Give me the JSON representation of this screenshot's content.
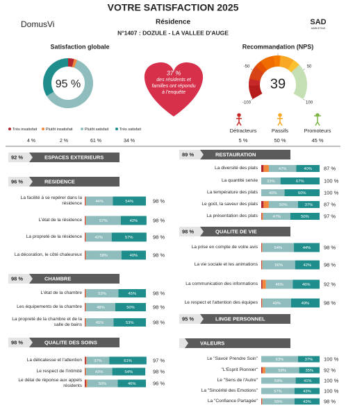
{
  "header": {
    "title": "VOTRE SATISFACTION 2025",
    "logo": "DomusVi",
    "residence": "Résidence",
    "establishment": "N°1407 : DOZULE - LA VALLEE D'AUGE",
    "brand": "SAD",
    "brand_sub": "MARKETING"
  },
  "segment_colors": [
    "#b3262e",
    "#f2883c",
    "#8fbcbc",
    "#1f8d8c"
  ],
  "satisfaction": {
    "title": "Satisfaction globale",
    "score": "95 %",
    "categories": [
      "Très insatisfait",
      "Plutôt insatisfait",
      "Plutôt satisfait",
      "Très satisfait"
    ],
    "values": [
      4,
      2,
      61,
      34
    ],
    "value_labels": [
      "4 %",
      "2 %",
      "61 %",
      "34 %"
    ]
  },
  "response": {
    "rate": "37 %",
    "text": "des résidents et familles ont répondu à l'enquête"
  },
  "nps": {
    "title": "Recommandation (NPS)",
    "value": 39,
    "lim": [
      -100,
      100
    ],
    "ticks": [
      -100,
      -50,
      0,
      50,
      100
    ],
    "groups": [
      {
        "name": "Détracteurs",
        "share": "5 %",
        "color": "#c62828"
      },
      {
        "name": "Passifs",
        "share": "50 %",
        "color": "#f5a623"
      },
      {
        "name": "Promoteurs",
        "share": "45 %",
        "color": "#7cb342"
      }
    ]
  },
  "columns": [
    [
      {
        "score": "92 %",
        "title": "ESPACES EXTERIEURS",
        "items": []
      },
      {
        "score": "96 %",
        "title": "RESIDENCE",
        "items": [
          {
            "label": "La facilité à se repérer dans la résidence",
            "segments": [
              {
                "value": 1
              },
              {
                "value": 1
              },
              {
                "value": 44,
                "label": "44%"
              },
              {
                "value": 54,
                "label": "54%"
              }
            ],
            "total": "98 %"
          },
          {
            "label": "L'état de la résidence",
            "segments": [
              {
                "value": 1
              },
              {
                "value": 1
              },
              {
                "value": 57,
                "label": "57%"
              },
              {
                "value": 42,
                "label": "42%"
              }
            ],
            "total": "98 %"
          },
          {
            "label": "La propreté de la résidence",
            "segments": [
              {
                "value": 1
              },
              {
                "value": 1
              },
              {
                "value": 42,
                "label": "42%"
              },
              {
                "value": 57,
                "label": "57%"
              }
            ],
            "total": "98 %"
          },
          {
            "label": "La décoration, le côté chaleureux",
            "segments": [
              {
                "value": 1
              },
              {
                "value": 1
              },
              {
                "value": 58,
                "label": "58%"
              },
              {
                "value": 40,
                "label": "40%"
              }
            ],
            "total": "98 %"
          }
        ]
      },
      {
        "score": "98 %",
        "title": "CHAMBRE",
        "items": [
          {
            "label": "L'état de la chambre",
            "segments": [
              {
                "value": 1
              },
              {
                "value": 1
              },
              {
                "value": 53,
                "label": "53%"
              },
              {
                "value": 45,
                "label": "45%"
              }
            ],
            "total": "98 %"
          },
          {
            "label": "Les équipements de la chambre",
            "segments": [
              {
                "value": 1
              },
              {
                "value": 1
              },
              {
                "value": 48,
                "label": "48%"
              },
              {
                "value": 50,
                "label": "50%"
              }
            ],
            "total": "98 %"
          },
          {
            "label": "La propreté de la chambre et de la salle de bains",
            "segments": [
              {
                "value": 1
              },
              {
                "value": 1
              },
              {
                "value": 45,
                "label": "45%"
              },
              {
                "value": 53,
                "label": "53%"
              }
            ],
            "total": "98 %"
          }
        ]
      },
      {
        "score": "98 %",
        "title": "QUALITE DES SOINS",
        "items": [
          {
            "label": "La délicatesse et l'attention",
            "segments": [
              {
                "value": 2
              },
              {
                "value": 1
              },
              {
                "value": 37,
                "label": "37%"
              },
              {
                "value": 61,
                "label": "61%"
              }
            ],
            "total": "97 %"
          },
          {
            "label": "Le respect de l'intimité",
            "segments": [
              {
                "value": 1
              },
              {
                "value": 1
              },
              {
                "value": 43,
                "label": "43%"
              },
              {
                "value": 54,
                "label": "54%"
              }
            ],
            "total": "98 %"
          },
          {
            "label": "Le délai de réponse aux appels résidents",
            "segments": [
              {
                "value": 2
              },
              {
                "value": 2
              },
              {
                "value": 50,
                "label": "50%"
              },
              {
                "value": 46,
                "label": "46%"
              }
            ],
            "total": "96 %"
          }
        ]
      }
    ],
    [
      {
        "score": "89 %",
        "title": "RESTAURATION",
        "items": [
          {
            "label": "La diversité des plats",
            "segments": [
              {
                "value": 4
              },
              {
                "value": 9
              },
              {
                "value": 47,
                "label": "47%"
              },
              {
                "value": 40,
                "label": "40%"
              }
            ],
            "total": "87 %"
          },
          {
            "label": "La quantité servie",
            "segments": [
              {
                "value": 0
              },
              {
                "value": 0
              },
              {
                "value": 33,
                "label": "33%"
              },
              {
                "value": 67,
                "label": "67%"
              }
            ],
            "total": "100 %"
          },
          {
            "label": "La température des plats",
            "segments": [
              {
                "value": 0
              },
              {
                "value": 0
              },
              {
                "value": 40,
                "label": "40%"
              },
              {
                "value": 60,
                "label": "60%"
              }
            ],
            "total": "100 %"
          },
          {
            "label": "Le goût, la saveur des plats",
            "segments": [
              {
                "value": 4
              },
              {
                "value": 9
              },
              {
                "value": 50,
                "label": "50%"
              },
              {
                "value": 37,
                "label": "37%"
              }
            ],
            "total": "87 %"
          },
          {
            "label": "La présentation des plats",
            "segments": [
              {
                "value": 1
              },
              {
                "value": 2
              },
              {
                "value": 47,
                "label": "47%"
              },
              {
                "value": 50,
                "label": "50%"
              }
            ],
            "total": "97 %"
          }
        ]
      },
      {
        "score": "98 %",
        "title": "QUALITE DE VIE",
        "items": [
          {
            "label": "La prise en compte de votre avis",
            "segments": [
              {
                "value": 1
              },
              {
                "value": 1
              },
              {
                "value": 54,
                "label": "54%"
              },
              {
                "value": 44,
                "label": "44%"
              }
            ],
            "total": "98 %"
          },
          {
            "label": "La vie sociale et les animations",
            "segments": [
              {
                "value": 1
              },
              {
                "value": 1
              },
              {
                "value": 56,
                "label": "56%"
              },
              {
                "value": 42,
                "label": "42%"
              }
            ],
            "total": "98 %"
          },
          {
            "label": "La communication des informations",
            "segments": [
              {
                "value": 2
              },
              {
                "value": 6
              },
              {
                "value": 46,
                "label": "46%"
              },
              {
                "value": 46,
                "label": "46%"
              }
            ],
            "total": "92 %"
          },
          {
            "label": "Le respect et l'attention des équipes",
            "segments": [
              {
                "value": 1
              },
              {
                "value": 1
              },
              {
                "value": 49,
                "label": "49%"
              },
              {
                "value": 49,
                "label": "49%"
              }
            ],
            "total": "98 %"
          }
        ]
      },
      {
        "score": "95 %",
        "title": "LINGE PERSONNEL",
        "items": []
      },
      {
        "title": "VALEURS",
        "items": [
          {
            "label": "Le \"Savoir Prendre Soin\"",
            "segments": [
              {
                "value": 0
              },
              {
                "value": 0
              },
              {
                "value": 63,
                "label": "63%"
              },
              {
                "value": 37,
                "label": "37%"
              }
            ],
            "total": "100 %"
          },
          {
            "label": "\"L'Esprit Pionnier\"",
            "segments": [
              {
                "value": 2
              },
              {
                "value": 5
              },
              {
                "value": 58,
                "label": "58%"
              },
              {
                "value": 35,
                "label": "35%"
              }
            ],
            "total": "92 %"
          },
          {
            "label": "Le \"Sens de l'Autre\"",
            "segments": [
              {
                "value": 0
              },
              {
                "value": 0
              },
              {
                "value": 59,
                "label": "59%"
              },
              {
                "value": 41,
                "label": "41%"
              }
            ],
            "total": "100 %"
          },
          {
            "label": "La \"Sincérité des Emotions\"",
            "segments": [
              {
                "value": 0
              },
              {
                "value": 0
              },
              {
                "value": 57,
                "label": "57%"
              },
              {
                "value": 43,
                "label": "43%"
              }
            ],
            "total": "100 %"
          },
          {
            "label": "La \"Confiance Partagée\"",
            "segments": [
              {
                "value": 1
              },
              {
                "value": 1
              },
              {
                "value": 55,
                "label": "55%"
              },
              {
                "value": 43,
                "label": "43%"
              }
            ],
            "total": "98 %"
          }
        ]
      }
    ]
  ]
}
